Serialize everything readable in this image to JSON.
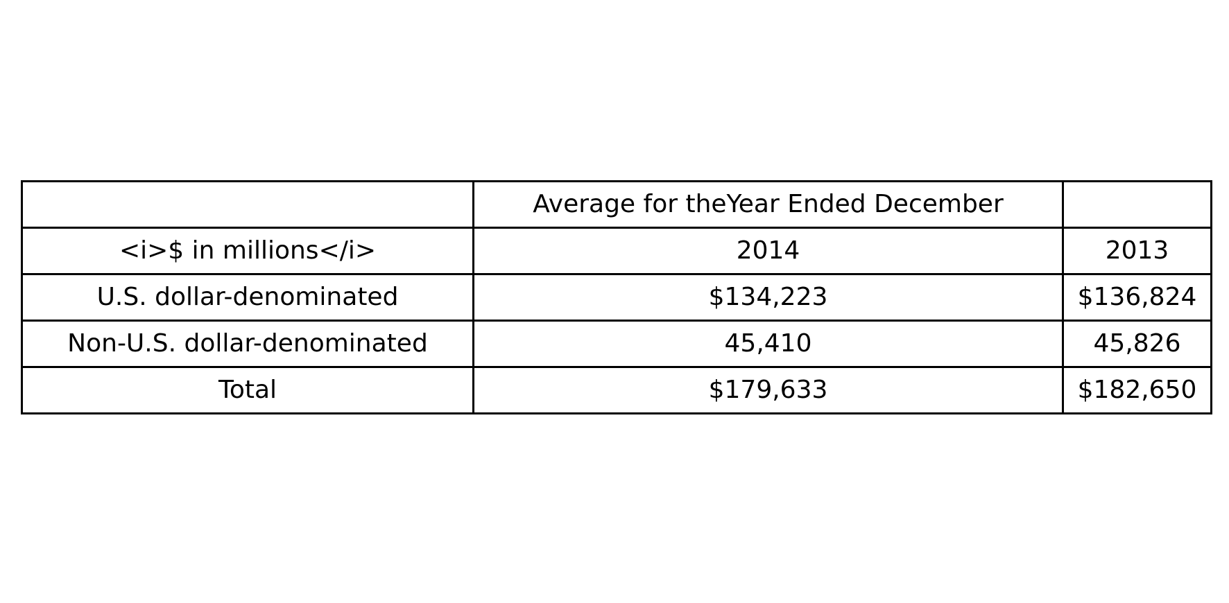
{
  "chart_data": {
    "type": "table",
    "header_row": [
      "",
      "Average for theYear Ended December",
      ""
    ],
    "columns": [
      "<i>$ in millions</i>",
      "2014",
      "2013"
    ],
    "rows": [
      {
        "label": "U.S. dollar-denominated",
        "values": [
          "$134,223",
          "$136,824"
        ]
      },
      {
        "label": "Non-U.S. dollar-denominated",
        "values": [
          "45,410",
          "45,826"
        ]
      },
      {
        "label": "Total",
        "values": [
          "$179,633",
          "$182,650"
        ]
      }
    ]
  }
}
